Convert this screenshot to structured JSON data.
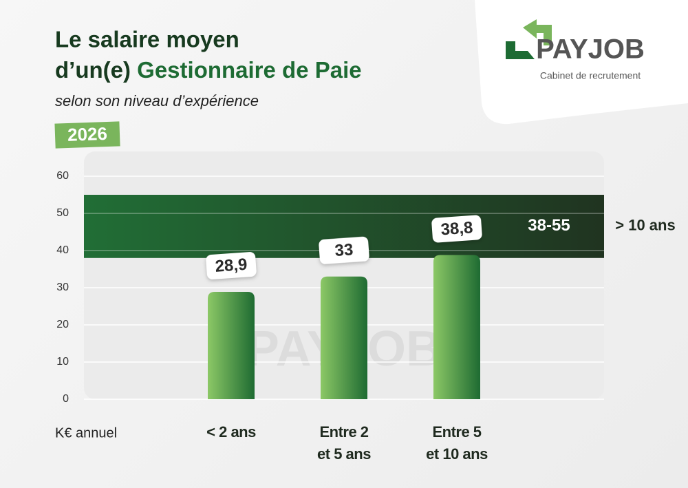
{
  "chart_data": {
    "type": "bar",
    "title": {
      "line1": "Le salaire moyen",
      "line2": "d’un(e)",
      "highlight": "Gestionnaire de Paie"
    },
    "subtitle": "selon son niveau d’expérience",
    "year": "2026",
    "y_axis_label": "K€ annuel",
    "categories": [
      "< 2 ans",
      "Entre 2\net 5 ans",
      "Entre 5\net 10 ans"
    ],
    "values": [
      28.9,
      33,
      38.8
    ],
    "value_labels": [
      "28,9",
      "33",
      "38,8"
    ],
    "color": "#2e7d3c",
    "band": {
      "category": "> 10 ans",
      "low": 38,
      "high": 55,
      "label": "38-55",
      "color": "#1b5e2a"
    },
    "ylim": [
      0,
      60
    ],
    "yticks": [
      0,
      10,
      20,
      30,
      40,
      50,
      60
    ],
    "grid": true,
    "logo": {
      "name": "PAYJOB",
      "tagline": "Cabinet de recrutement"
    }
  }
}
